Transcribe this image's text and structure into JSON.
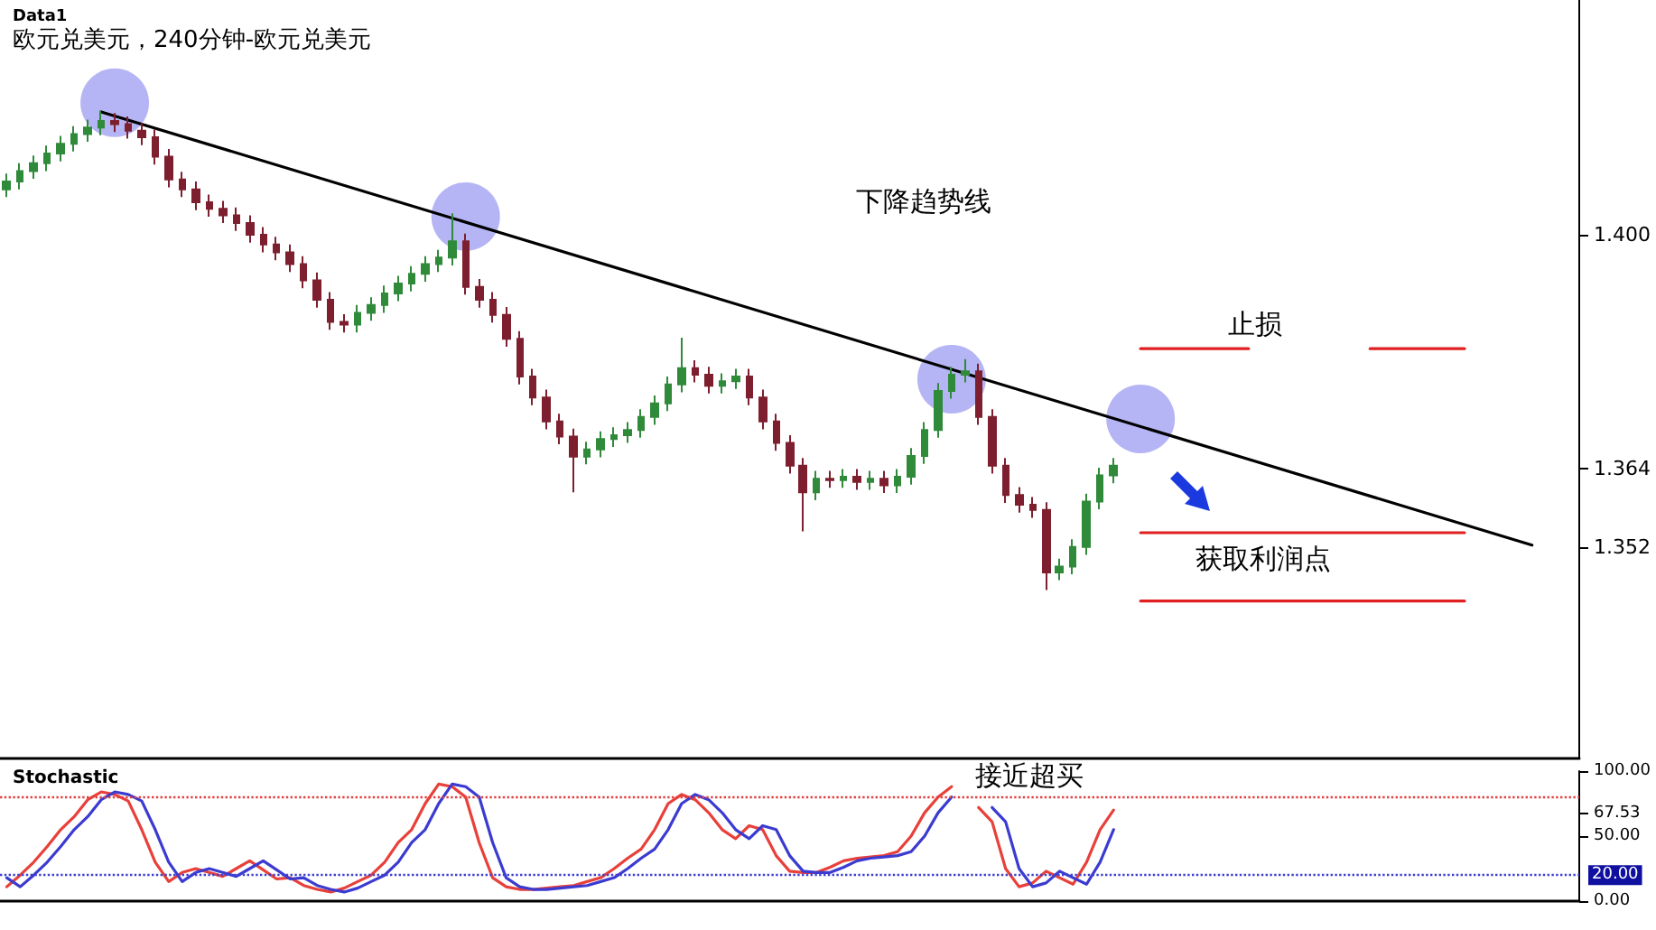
{
  "chart_data": [
    {
      "type": "candlestick",
      "title": "欧元兑美元，240分钟-欧元兑美元",
      "subtitle": "Data1",
      "annotations": [
        "下降趋势线",
        "止损",
        "获取利润点"
      ],
      "categories": [
        null,
        null,
        null,
        null,
        null,
        null,
        null,
        null,
        null,
        null,
        null,
        null,
        null,
        null,
        null,
        null,
        null,
        null,
        null,
        null,
        null,
        null,
        null,
        null,
        null,
        null,
        null,
        null,
        null,
        null,
        null,
        null,
        null,
        null,
        null,
        null,
        null,
        null,
        null,
        null,
        null,
        null,
        null,
        null,
        null,
        null,
        null,
        null,
        null,
        null,
        null,
        null,
        null,
        null,
        null,
        null,
        null,
        null,
        null,
        null,
        null,
        null,
        null,
        null,
        null,
        null,
        null,
        null,
        null,
        null,
        null,
        null,
        null,
        null,
        null,
        null,
        null,
        null,
        null,
        null,
        null,
        null,
        null,
        null,
        null,
        null,
        null,
        null,
        null,
        null,
        null,
        null,
        null,
        null,
        null,
        null,
        null,
        null,
        null,
        null,
        null,
        null,
        null,
        null,
        null,
        null,
        null,
        null,
        null,
        null,
        null,
        null,
        null,
        null,
        null,
        null,
        null
      ],
      "ohlc": [
        [
          1.407,
          1.4094,
          1.4058,
          1.4082
        ],
        [
          1.4082,
          1.411,
          1.407,
          1.4098
        ],
        [
          1.4098,
          1.4122,
          1.4086,
          1.411
        ],
        [
          1.411,
          1.4137,
          1.4098,
          1.4125
        ],
        [
          1.4125,
          1.4152,
          1.4113,
          1.414
        ],
        [
          1.414,
          1.4167,
          1.4128,
          1.4155
        ],
        [
          1.4155,
          1.4177,
          1.4143,
          1.4165
        ],
        [
          1.4165,
          1.4191,
          1.4153,
          1.4175
        ],
        [
          1.4175,
          1.4187,
          1.4158,
          1.417
        ],
        [
          1.417,
          1.4182,
          1.4148,
          1.416
        ],
        [
          1.416,
          1.4172,
          1.4138,
          1.415
        ],
        [
          1.415,
          1.4162,
          1.4108,
          1.412
        ],
        [
          1.412,
          1.4132,
          1.4073,
          1.4085
        ],
        [
          1.4085,
          1.4097,
          1.4058,
          1.407
        ],
        [
          1.407,
          1.4082,
          1.4038,
          1.405
        ],
        [
          1.405,
          1.4062,
          1.4028,
          1.404
        ],
        [
          1.404,
          1.4052,
          1.4018,
          1.403
        ],
        [
          1.403,
          1.4042,
          1.4006,
          1.4018
        ],
        [
          1.4018,
          1.403,
          1.3988,
          1.4
        ],
        [
          1.4,
          1.4012,
          1.3973,
          1.3985
        ],
        [
          1.3985,
          1.3997,
          1.3961,
          1.3973
        ],
        [
          1.3973,
          1.3985,
          1.3943,
          1.3955
        ],
        [
          1.3955,
          1.3967,
          1.3918,
          1.393
        ],
        [
          1.393,
          1.3942,
          1.3888,
          1.39
        ],
        [
          1.39,
          1.3912,
          1.3854,
          1.3866
        ],
        [
          1.3866,
          1.3878,
          1.385,
          1.3862
        ],
        [
          1.3862,
          1.3892,
          1.385,
          1.388
        ],
        [
          1.388,
          1.3904,
          1.3868,
          1.3892
        ],
        [
          1.3892,
          1.3922,
          1.388,
          1.391
        ],
        [
          1.391,
          1.3937,
          1.3898,
          1.3925
        ],
        [
          1.3925,
          1.3952,
          1.3913,
          1.394
        ],
        [
          1.394,
          1.3967,
          1.3928,
          1.3955
        ],
        [
          1.3955,
          1.3977,
          1.3943,
          1.3965
        ],
        [
          1.3965,
          1.4033,
          1.3953,
          1.399
        ],
        [
          1.399,
          1.4002,
          1.3908,
          1.392
        ],
        [
          1.392,
          1.3932,
          1.3888,
          1.39
        ],
        [
          1.39,
          1.3912,
          1.3865,
          1.3877
        ],
        [
          1.3877,
          1.3889,
          1.3828,
          1.384
        ],
        [
          1.384,
          1.3852,
          1.377,
          1.3782
        ],
        [
          1.3782,
          1.3794,
          1.3738,
          1.375
        ],
        [
          1.375,
          1.3762,
          1.3701,
          1.3713
        ],
        [
          1.3713,
          1.3725,
          1.3678,
          1.369
        ],
        [
          1.369,
          1.3702,
          1.3604,
          1.3659
        ],
        [
          1.3659,
          1.3682,
          1.3647,
          1.367
        ],
        [
          1.367,
          1.3698,
          1.3658,
          1.3686
        ],
        [
          1.3686,
          1.3704,
          1.3674,
          1.3692
        ],
        [
          1.3692,
          1.3712,
          1.368,
          1.37
        ],
        [
          1.37,
          1.3732,
          1.3688,
          1.372
        ],
        [
          1.372,
          1.3753,
          1.3708,
          1.3741
        ],
        [
          1.3741,
          1.3782,
          1.3729,
          1.377
        ],
        [
          1.377,
          1.3842,
          1.3758,
          1.3795
        ],
        [
          1.3795,
          1.3807,
          1.3773,
          1.3785
        ],
        [
          1.3785,
          1.3797,
          1.3756,
          1.3768
        ],
        [
          1.3768,
          1.3787,
          1.3756,
          1.3775
        ],
        [
          1.3775,
          1.3794,
          1.3763,
          1.3782
        ],
        [
          1.3782,
          1.3794,
          1.3738,
          1.375
        ],
        [
          1.375,
          1.3762,
          1.3701,
          1.3713
        ],
        [
          1.3713,
          1.3725,
          1.3668,
          1.368
        ],
        [
          1.368,
          1.3692,
          1.3633,
          1.3645
        ],
        [
          1.3645,
          1.3657,
          1.3544,
          1.3604
        ],
        [
          1.3604,
          1.3637,
          1.3592,
          1.3625
        ],
        [
          1.3625,
          1.3637,
          1.3611,
          1.3623
        ],
        [
          1.3623,
          1.364,
          1.3611,
          1.3628
        ],
        [
          1.3628,
          1.364,
          1.3608,
          1.362
        ],
        [
          1.362,
          1.3637,
          1.3608,
          1.3625
        ],
        [
          1.3625,
          1.3637,
          1.3603,
          1.3615
        ],
        [
          1.3615,
          1.364,
          1.3603,
          1.3628
        ],
        [
          1.3628,
          1.3672,
          1.3616,
          1.366
        ],
        [
          1.366,
          1.3712,
          1.3648,
          1.37
        ],
        [
          1.37,
          1.3772,
          1.3688,
          1.376
        ],
        [
          1.376,
          1.3797,
          1.3748,
          1.3785
        ],
        [
          1.3785,
          1.3809,
          1.3773,
          1.379
        ],
        [
          1.379,
          1.3802,
          1.3708,
          1.372
        ],
        [
          1.372,
          1.3732,
          1.3633,
          1.3645
        ],
        [
          1.3645,
          1.3657,
          1.3588,
          1.36
        ],
        [
          1.36,
          1.3612,
          1.3573,
          1.3585
        ],
        [
          1.3585,
          1.3597,
          1.3565,
          1.3577
        ],
        [
          1.3577,
          1.3589,
          1.3454,
          1.3481
        ],
        [
          1.3481,
          1.3502,
          1.3469,
          1.349
        ],
        [
          1.349,
          1.3532,
          1.3478,
          1.352
        ],
        [
          1.352,
          1.3602,
          1.3508,
          1.359
        ],
        [
          1.359,
          1.3642,
          1.3578,
          1.363
        ],
        [
          1.363,
          1.3657,
          1.3618,
          1.3645
        ],
        null,
        null,
        null,
        null,
        null,
        null,
        null,
        null,
        null,
        null,
        null,
        null,
        null,
        null,
        null,
        null,
        null,
        null,
        null,
        null,
        null,
        null,
        null,
        null,
        null,
        null,
        null,
        null,
        null,
        null,
        null,
        null,
        null,
        null
      ],
      "series": [
        {
          "type": "line",
          "color": "#000000",
          "values": [
            null,
            null,
            null,
            null,
            null,
            null,
            null,
            1.4189,
            null,
            null,
            null,
            null,
            null,
            null,
            null,
            null,
            null,
            null,
            null,
            null,
            null,
            null,
            null,
            null,
            null,
            null,
            null,
            null,
            null,
            null,
            null,
            null,
            null,
            null,
            null,
            null,
            null,
            null,
            null,
            null,
            null,
            null,
            null,
            null,
            null,
            null,
            null,
            null,
            null,
            null,
            null,
            null,
            null,
            null,
            null,
            null,
            null,
            null,
            null,
            null,
            null,
            null,
            null,
            null,
            null,
            null,
            null,
            null,
            null,
            null,
            null,
            null,
            null,
            null,
            null,
            null,
            null,
            null,
            null,
            null,
            null,
            null,
            null,
            null,
            null,
            null,
            null,
            null,
            null,
            null,
            null,
            null,
            null,
            null,
            null,
            null,
            null,
            null,
            null,
            null,
            null,
            null,
            null,
            null,
            null,
            null,
            null,
            null,
            null,
            null,
            null,
            null,
            null,
            1.3523,
            null,
            null,
            null
          ]
        },
        {
          "type": "scatter",
          "color": "#8484ee",
          "values": [
            null,
            null,
            null,
            null,
            null,
            null,
            null,
            null,
            1.4203,
            null,
            null,
            null,
            null,
            null,
            null,
            null,
            null,
            null,
            null,
            null,
            null,
            null,
            null,
            null,
            null,
            null,
            null,
            null,
            null,
            null,
            null,
            null,
            null,
            null,
            1.4028,
            null,
            null,
            null,
            null,
            null,
            null,
            null,
            null,
            null,
            null,
            null,
            null,
            null,
            null,
            null,
            null,
            null,
            null,
            null,
            null,
            null,
            null,
            null,
            null,
            null,
            null,
            null,
            null,
            null,
            null,
            null,
            null,
            null,
            null,
            null,
            1.3778,
            null,
            null,
            null,
            null,
            null,
            null,
            null,
            null,
            null,
            null,
            null,
            null,
            null,
            1.3717,
            null,
            null,
            null,
            null,
            null,
            null,
            null,
            null,
            null,
            null,
            null,
            null,
            null,
            null,
            null,
            null,
            null,
            null,
            null,
            null,
            null,
            null,
            null,
            null,
            null,
            null,
            null,
            null,
            null,
            null,
            null,
            null
          ]
        },
        {
          "type": "line",
          "color": "#e02020",
          "values": [
            null,
            null,
            null,
            null,
            null,
            null,
            null,
            null,
            null,
            null,
            null,
            null,
            null,
            null,
            null,
            null,
            null,
            null,
            null,
            null,
            null,
            null,
            null,
            null,
            null,
            null,
            null,
            null,
            null,
            null,
            null,
            null,
            null,
            null,
            null,
            null,
            null,
            null,
            null,
            null,
            null,
            null,
            null,
            null,
            null,
            null,
            null,
            null,
            null,
            null,
            null,
            null,
            null,
            null,
            null,
            null,
            null,
            null,
            null,
            null,
            null,
            null,
            null,
            null,
            null,
            null,
            null,
            null,
            null,
            null,
            null,
            null,
            null,
            null,
            null,
            null,
            null,
            null,
            null,
            null,
            null,
            null,
            null,
            null,
            1.3825,
            1.3825,
            1.3825,
            1.3825,
            1.3825,
            1.3825,
            1.3825,
            1.3825,
            1.3825,
            null,
            null,
            null,
            null,
            null,
            null,
            null,
            null,
            null,
            null,
            null,
            null,
            null,
            null,
            null,
            null,
            null,
            null,
            null,
            null,
            null,
            null,
            null,
            null
          ]
        },
        {
          "type": "line",
          "color": "#e02020",
          "values": [
            null,
            null,
            null,
            null,
            null,
            null,
            null,
            null,
            null,
            null,
            null,
            null,
            null,
            null,
            null,
            null,
            null,
            null,
            null,
            null,
            null,
            null,
            null,
            null,
            null,
            null,
            null,
            null,
            null,
            null,
            null,
            null,
            null,
            null,
            null,
            null,
            null,
            null,
            null,
            null,
            null,
            null,
            null,
            null,
            null,
            null,
            null,
            null,
            null,
            null,
            null,
            null,
            null,
            null,
            null,
            null,
            null,
            null,
            null,
            null,
            null,
            null,
            null,
            null,
            null,
            null,
            null,
            null,
            null,
            null,
            null,
            null,
            null,
            null,
            null,
            null,
            null,
            null,
            null,
            null,
            null,
            null,
            null,
            null,
            null,
            null,
            null,
            null,
            null,
            null,
            null,
            null,
            null,
            null,
            null,
            null,
            null,
            null,
            null,
            null,
            null,
            1.3825,
            1.3825,
            1.3825,
            1.3825,
            1.3825,
            1.3825,
            1.3825,
            1.3825,
            null,
            null,
            null,
            null,
            null,
            null,
            null,
            null
          ]
        },
        {
          "type": "line",
          "color": "#e02020",
          "values": [
            null,
            null,
            null,
            null,
            null,
            null,
            null,
            null,
            null,
            null,
            null,
            null,
            null,
            null,
            null,
            null,
            null,
            null,
            null,
            null,
            null,
            null,
            null,
            null,
            null,
            null,
            null,
            null,
            null,
            null,
            null,
            null,
            null,
            null,
            null,
            null,
            null,
            null,
            null,
            null,
            null,
            null,
            null,
            null,
            null,
            null,
            null,
            null,
            null,
            null,
            null,
            null,
            null,
            null,
            null,
            null,
            null,
            null,
            null,
            null,
            null,
            null,
            null,
            null,
            null,
            null,
            null,
            null,
            null,
            null,
            null,
            null,
            null,
            null,
            null,
            null,
            null,
            null,
            null,
            null,
            null,
            null,
            null,
            null,
            1.3542,
            1.3542,
            1.3542,
            1.3542,
            1.3542,
            1.3542,
            1.3542,
            1.3542,
            1.3542,
            1.3542,
            1.3542,
            1.3542,
            1.3542,
            1.3542,
            1.3542,
            1.3542,
            1.3542,
            1.3542,
            1.3542,
            1.3542,
            1.3542,
            1.3542,
            1.3542,
            1.3542,
            1.3542,
            null,
            null,
            null,
            null,
            null,
            null,
            null,
            null
          ]
        },
        {
          "type": "line",
          "color": "#e02020",
          "values": [
            null,
            null,
            null,
            null,
            null,
            null,
            null,
            null,
            null,
            null,
            null,
            null,
            null,
            null,
            null,
            null,
            null,
            null,
            null,
            null,
            null,
            null,
            null,
            null,
            null,
            null,
            null,
            null,
            null,
            null,
            null,
            null,
            null,
            null,
            null,
            null,
            null,
            null,
            null,
            null,
            null,
            null,
            null,
            null,
            null,
            null,
            null,
            null,
            null,
            null,
            null,
            null,
            null,
            null,
            null,
            null,
            null,
            null,
            null,
            null,
            null,
            null,
            null,
            null,
            null,
            null,
            null,
            null,
            null,
            null,
            null,
            null,
            null,
            null,
            null,
            null,
            null,
            null,
            null,
            null,
            null,
            null,
            null,
            null,
            1.3437,
            1.3437,
            1.3437,
            1.3437,
            1.3437,
            1.3437,
            1.3437,
            1.3437,
            1.3437,
            1.3437,
            1.3437,
            1.3437,
            1.3437,
            1.3437,
            1.3437,
            1.3437,
            1.3437,
            1.3437,
            1.3437,
            1.3437,
            1.3437,
            1.3437,
            1.3437,
            1.3437,
            1.3437,
            null,
            null,
            null,
            null,
            null,
            null,
            null,
            null
          ]
        }
      ],
      "ylim": [
        1.3195,
        1.4361
      ],
      "yticks": [
        {
          "value": 1.4,
          "label": "1.400"
        },
        1.364,
        1.352
      ],
      "tick_labels": "y",
      "grid": false
    },
    {
      "type": "line",
      "title": "Stochastic",
      "annotations": [
        "接近超买"
      ],
      "categories": [
        null,
        null,
        null,
        null,
        null,
        null,
        null,
        null,
        null,
        null,
        null,
        null,
        null,
        null,
        null,
        null,
        null,
        null,
        null,
        null,
        null,
        null,
        null,
        null,
        null,
        null,
        null,
        null,
        null,
        null,
        null,
        null,
        null,
        null,
        null,
        null,
        null,
        null,
        null,
        null,
        null,
        null,
        null,
        null,
        null,
        null,
        null,
        null,
        null,
        null,
        null,
        null,
        null,
        null,
        null,
        null,
        null,
        null,
        null,
        null,
        null,
        null,
        null,
        null,
        null,
        null,
        null,
        null,
        null,
        null,
        null,
        null,
        null,
        null,
        null,
        null,
        null,
        null,
        null,
        null,
        null,
        null,
        null,
        null,
        null,
        null,
        null,
        null,
        null,
        null,
        null,
        null,
        null,
        null,
        null,
        null,
        null,
        null,
        null,
        null,
        null,
        null,
        null,
        null,
        null,
        null,
        null,
        null,
        null,
        null,
        null,
        null,
        null,
        null,
        null,
        null,
        null
      ],
      "series": [
        {
          "color": "#e8403a",
          "values": [
            11,
            20,
            30,
            42,
            55,
            65,
            78,
            84,
            82,
            77,
            55,
            30,
            15,
            22,
            25,
            22,
            19,
            25,
            31,
            24,
            17,
            18,
            12,
            9,
            7,
            10,
            15,
            20,
            30,
            45,
            55,
            75,
            90,
            88,
            80,
            45,
            18,
            11,
            9,
            9,
            10,
            11,
            12,
            15,
            18,
            25,
            33,
            40,
            55,
            75,
            82,
            78,
            68,
            55,
            48,
            58,
            55,
            35,
            23,
            22,
            22,
            26,
            31,
            33,
            34,
            35,
            38,
            50,
            68,
            80,
            88,
            null,
            72,
            61,
            25,
            11,
            14,
            23,
            18,
            13,
            30,
            55,
            70,
            null,
            null,
            null,
            null,
            null,
            null,
            null,
            null,
            null,
            null,
            null,
            null,
            null,
            null,
            null,
            null,
            null,
            null,
            null,
            null,
            null,
            null,
            null,
            null,
            null,
            null,
            null,
            null,
            null,
            null,
            null,
            null,
            null,
            null
          ]
        },
        {
          "color": "#3b3bd1",
          "values": [
            18,
            11,
            20,
            30,
            42,
            55,
            65,
            78,
            84,
            82,
            77,
            55,
            30,
            15,
            22,
            25,
            22,
            19,
            25,
            31,
            24,
            17,
            18,
            12,
            9,
            7,
            10,
            15,
            20,
            30,
            45,
            55,
            75,
            90,
            88,
            80,
            45,
            18,
            11,
            9,
            9,
            10,
            11,
            12,
            15,
            18,
            25,
            33,
            40,
            55,
            75,
            82,
            78,
            68,
            55,
            48,
            58,
            55,
            35,
            23,
            22,
            22,
            26,
            31,
            33,
            34,
            35,
            38,
            50,
            68,
            80,
            null,
            null,
            72,
            61,
            25,
            11,
            14,
            23,
            18,
            13,
            30,
            55,
            null,
            null,
            null,
            null,
            null,
            null,
            null,
            null,
            null,
            null,
            null,
            null,
            null,
            null,
            null,
            null,
            null,
            null,
            null,
            null,
            null,
            null,
            null,
            null,
            null,
            null,
            null,
            null,
            null,
            null,
            null,
            null,
            null,
            null
          ]
        }
      ],
      "ref_lines": [
        {
          "axis": "y",
          "value": 80,
          "color": "#e04040",
          "line_style": "dotted"
        },
        {
          "axis": "y",
          "value": 20,
          "label": "20.00",
          "color": "#4040d0",
          "line_style": "dotted"
        }
      ],
      "ylim": [
        0,
        100
      ],
      "yticks": [
        {
          "value": 100,
          "label": "100.00"
        },
        {
          "value": 67.53,
          "label": "67.53"
        },
        {
          "value": 50,
          "label": "50.00"
        },
        {
          "value": 0,
          "label": "0.00"
        }
      ],
      "tick_labels": "y",
      "grid": false
    }
  ]
}
